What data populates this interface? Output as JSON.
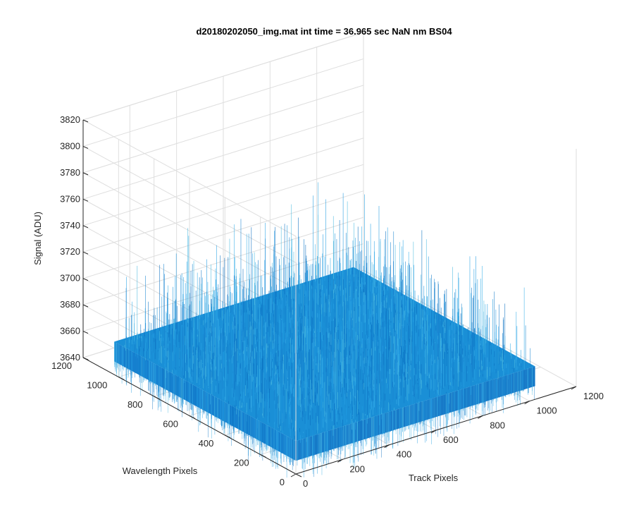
{
  "chart_data": {
    "type": "surface",
    "title": "d20180202050_img.mat int time = 36.965 sec  NaN nm BS04",
    "xlabel": "Track Pixels",
    "ylabel": "Wavelength Pixels",
    "zlabel": "Signal (ADU)",
    "xlim": [
      0,
      1200
    ],
    "ylim": [
      0,
      1200
    ],
    "zlim": [
      3640,
      3820
    ],
    "x_ticks": [
      0,
      200,
      400,
      600,
      800,
      1000,
      1200
    ],
    "y_ticks": [
      0,
      200,
      400,
      600,
      800,
      1000,
      1200
    ],
    "z_ticks": [
      3640,
      3660,
      3680,
      3700,
      3720,
      3740,
      3760,
      3780,
      3800,
      3820
    ],
    "x_extent": [
      1,
      1024
    ],
    "y_extent": [
      1,
      1024
    ],
    "surface_mean": 3665,
    "noise_range": [
      3655,
      3745
    ],
    "grid": true,
    "colormap": "parula",
    "surface_color": "#1a8fd6"
  }
}
